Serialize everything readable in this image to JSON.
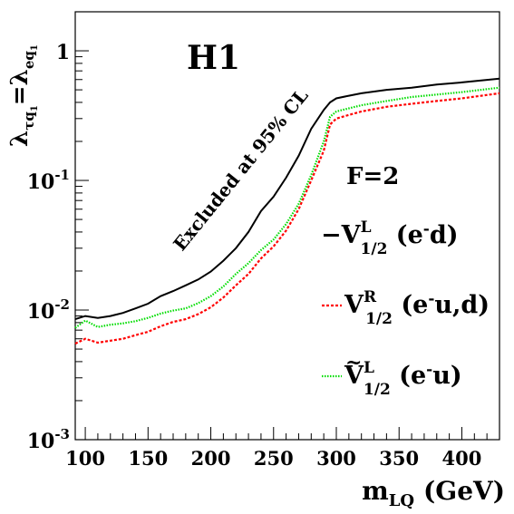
{
  "chart_data": {
    "type": "line",
    "title": "H1",
    "annotation": "Excluded at 95% CL",
    "subtitle": "F=2",
    "xlabel": {
      "main": "m",
      "sub": "LQ",
      "unit": "(GeV)"
    },
    "ylabel": {
      "lhs": "λ",
      "lhs_sub": "τq",
      "lhs_subsub": "1",
      "eq": "=",
      "rhs": "λ",
      "rhs_sub": "eq",
      "rhs_subsub": "1"
    },
    "xlim": [
      92,
      430
    ],
    "ylim": [
      0.001,
      2
    ],
    "yscale": "log",
    "grid": false,
    "legend_position": "right",
    "x_ticks": [
      {
        "value": 100,
        "label": "100"
      },
      {
        "value": 150,
        "label": "150"
      },
      {
        "value": 200,
        "label": "200"
      },
      {
        "value": 250,
        "label": "250"
      },
      {
        "value": 300,
        "label": "300"
      },
      {
        "value": 350,
        "label": "350"
      },
      {
        "value": 400,
        "label": "400"
      }
    ],
    "y_ticks": [
      {
        "value": 0.001,
        "base": "10",
        "exp": "-3"
      },
      {
        "value": 0.01,
        "base": "10",
        "exp": "-2"
      },
      {
        "value": 0.1,
        "base": "10",
        "exp": "-1"
      },
      {
        "value": 1,
        "base": "1",
        "exp": ""
      }
    ],
    "series": [
      {
        "id": "s1",
        "name": "V1/2 L (e-d)",
        "legend": {
          "prefix": "−",
          "tilde": false,
          "sym": "V",
          "sup": "L",
          "sub": "1/2",
          "paren_open": " (e",
          "sup2": "-",
          "rest": "d)"
        },
        "color": "#000000",
        "dash": "solid",
        "x": [
          92,
          100,
          110,
          120,
          130,
          140,
          150,
          160,
          170,
          180,
          190,
          200,
          210,
          220,
          230,
          240,
          250,
          260,
          270,
          280,
          290,
          295,
          300,
          310,
          320,
          340,
          360,
          380,
          400,
          430
        ],
        "y": [
          0.0085,
          0.009,
          0.0087,
          0.009,
          0.0095,
          0.0103,
          0.0112,
          0.0128,
          0.014,
          0.0155,
          0.0172,
          0.0198,
          0.024,
          0.03,
          0.04,
          0.058,
          0.075,
          0.105,
          0.155,
          0.25,
          0.35,
          0.4,
          0.43,
          0.45,
          0.47,
          0.5,
          0.52,
          0.55,
          0.57,
          0.61
        ]
      },
      {
        "id": "s2",
        "name": "V1/2 R (e-u,d)",
        "legend": {
          "prefix": "",
          "tilde": false,
          "sym": "V",
          "sup": "R",
          "sub": "1/2",
          "paren_open": " (e",
          "sup2": "-",
          "rest": "u,d)"
        },
        "color": "#ff0000",
        "dash": "3,2",
        "x": [
          92,
          100,
          110,
          120,
          130,
          140,
          150,
          160,
          170,
          180,
          190,
          200,
          210,
          220,
          230,
          240,
          250,
          260,
          270,
          280,
          290,
          295,
          300,
          310,
          320,
          340,
          360,
          380,
          400,
          430
        ],
        "y": [
          0.0055,
          0.006,
          0.0056,
          0.0058,
          0.006,
          0.0064,
          0.0068,
          0.0075,
          0.0081,
          0.0085,
          0.0093,
          0.0105,
          0.0125,
          0.0155,
          0.019,
          0.025,
          0.031,
          0.041,
          0.06,
          0.1,
          0.17,
          0.27,
          0.3,
          0.32,
          0.34,
          0.37,
          0.39,
          0.41,
          0.43,
          0.47
        ]
      },
      {
        "id": "s3",
        "name": "Ṽ1/2 L (e-u)",
        "legend": {
          "prefix": "",
          "tilde": true,
          "sym": "V",
          "sup": "L",
          "sub": "1/2",
          "paren_open": " (e",
          "sup2": "-",
          "rest": "u)"
        },
        "color": "#00dd00",
        "dash": "1.5,1.5",
        "x": [
          92,
          100,
          110,
          120,
          130,
          140,
          150,
          160,
          170,
          180,
          190,
          200,
          210,
          220,
          230,
          240,
          250,
          260,
          270,
          280,
          290,
          295,
          300,
          310,
          320,
          340,
          360,
          380,
          400,
          430
        ],
        "y": [
          0.0073,
          0.0083,
          0.0074,
          0.0077,
          0.0079,
          0.0082,
          0.0087,
          0.0094,
          0.0099,
          0.0103,
          0.0113,
          0.0128,
          0.0152,
          0.019,
          0.023,
          0.029,
          0.035,
          0.046,
          0.066,
          0.11,
          0.2,
          0.31,
          0.34,
          0.36,
          0.38,
          0.41,
          0.44,
          0.46,
          0.48,
          0.52
        ]
      }
    ]
  }
}
